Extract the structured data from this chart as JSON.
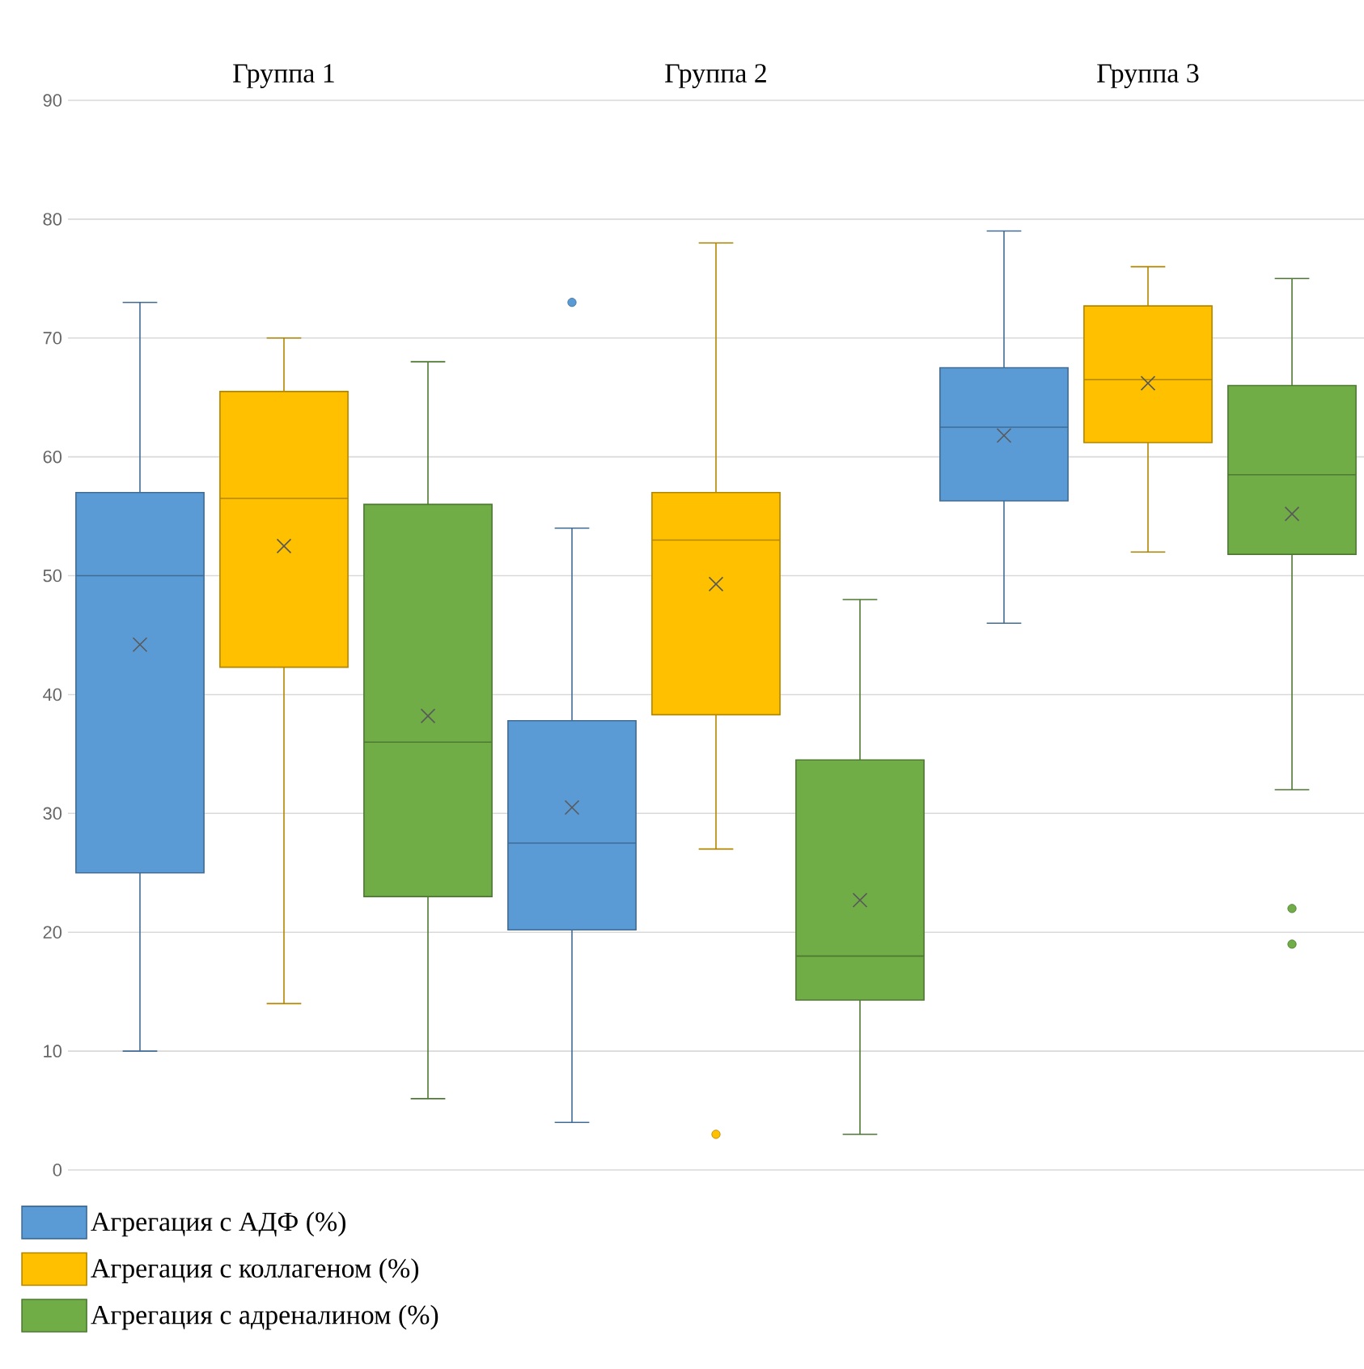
{
  "chart_data": {
    "type": "box",
    "categories": [
      "Группа 1",
      "Группа 2",
      "Группа 3"
    ],
    "series": [
      {
        "name": "Агрегация с АДФ (%)",
        "color": "#5b9bd5",
        "boxes": [
          {
            "low": 10,
            "q1": 25,
            "median": 50,
            "q3": 57,
            "high": 73,
            "mean": 44.2
          },
          {
            "low": 4,
            "q1": 20.2,
            "median": 27.5,
            "q3": 37.8,
            "high": 54,
            "mean": 30.5,
            "outliers": [
              73
            ]
          },
          {
            "low": 46,
            "q1": 56.3,
            "median": 62.5,
            "q3": 67.5,
            "high": 79,
            "mean": 61.8
          }
        ]
      },
      {
        "name": "Агрегация с коллагеном (%)",
        "color": "#ffc000",
        "boxes": [
          {
            "low": 14,
            "q1": 42.3,
            "median": 56.5,
            "q3": 65.5,
            "high": 70,
            "mean": 52.5
          },
          {
            "low": 27,
            "q1": 38.3,
            "median": 53,
            "q3": 57,
            "high": 78,
            "mean": 49.3,
            "outliers": [
              3
            ]
          },
          {
            "low": 52,
            "q1": 61.2,
            "median": 66.5,
            "q3": 72.7,
            "high": 76,
            "mean": 66.2
          }
        ]
      },
      {
        "name": "Агрегация с адреналином (%)",
        "color": "#70ad47",
        "boxes": [
          {
            "low": 6,
            "q1": 23,
            "median": 36,
            "q3": 56,
            "high": 68,
            "mean": 38.2
          },
          {
            "low": 3,
            "q1": 14.3,
            "median": 18,
            "q3": 34.5,
            "high": 48,
            "mean": 22.7
          },
          {
            "low": 32,
            "q1": 51.8,
            "median": 58.5,
            "q3": 66,
            "high": 75,
            "mean": 55.2,
            "outliers": [
              22,
              19
            ]
          }
        ]
      }
    ],
    "ylim": [
      0,
      90
    ],
    "yticks": [
      0,
      10,
      20,
      30,
      40,
      50,
      60,
      70,
      80,
      90
    ],
    "grid": "y",
    "legend": "bottom"
  }
}
